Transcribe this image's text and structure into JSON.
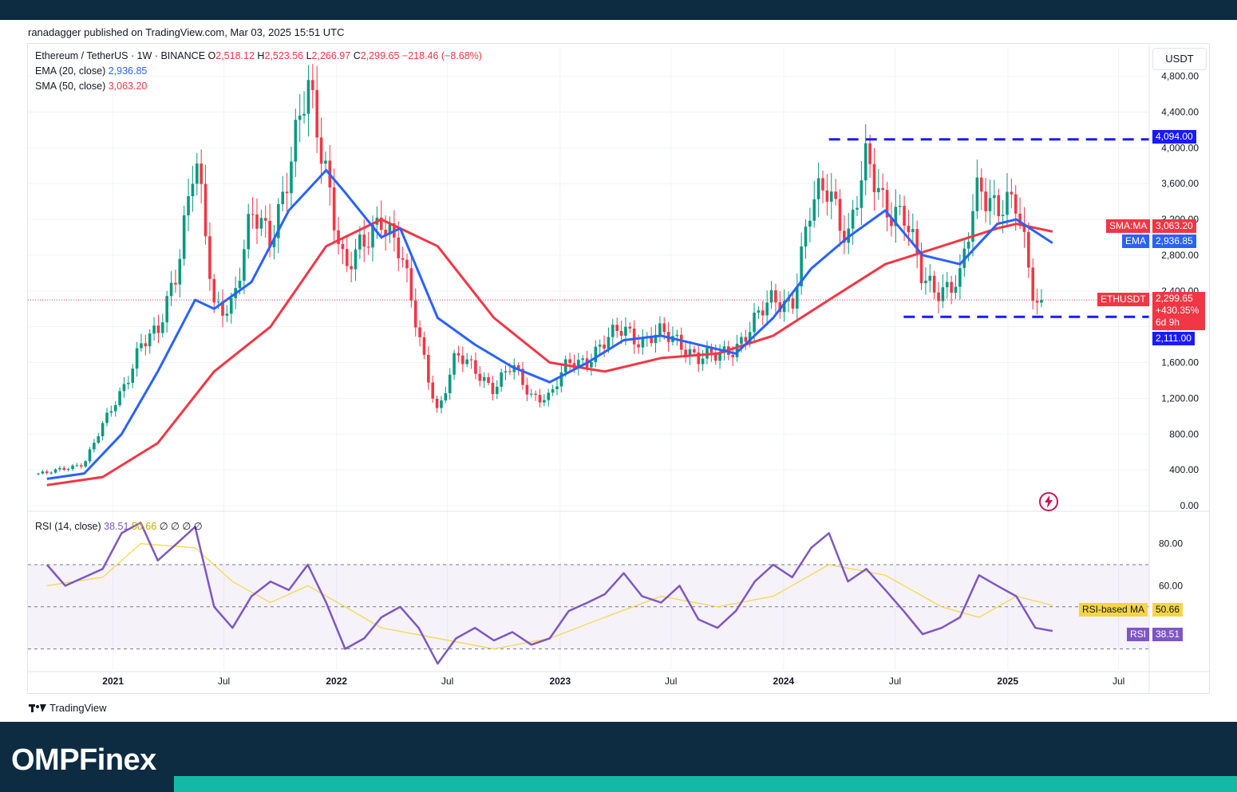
{
  "publisher_line": "ranadagger published on TradingView.com, Mar 03, 2025 15:51 UTC",
  "legend": {
    "symbol": "Ethereum / TetherUS · 1W · BINANCE",
    "o_label": "O",
    "o": "2,518.12",
    "h_label": "H",
    "h": "2,523.56",
    "l_label": "L",
    "l": "2,266.97",
    "c_label": "C",
    "c": "2,299.65",
    "change": "−218.46 (−8.68%)",
    "ema_label": "EMA (20, close)",
    "ema_value": "2,936.85",
    "sma_label": "SMA (50, close)",
    "sma_value": "3,063.20",
    "rsi_label": "RSI (14, close)",
    "rsi_value": "38.51",
    "rsi_ma_value": "50.66",
    "rsi_extra": "∅ ∅ ∅ ∅"
  },
  "currency": "USDT",
  "tags": {
    "resistance": "4,094.00",
    "sma_name": "SMA:MA",
    "sma_value": "3,063.20",
    "ema_name": "EMA",
    "ema_value": "2,936.85",
    "symbol": "ETHUSDT",
    "price": "2,299.65",
    "change_pct": "+430.35%",
    "countdown": "6d 9h",
    "support": "2,111.00",
    "rsi_ma_name": "RSI-based MA",
    "rsi_ma_value": "50.66",
    "rsi_name": "RSI",
    "rsi_value": "38.51"
  },
  "footer_logo": "TradingView",
  "brand": "OMPFinex",
  "colors": {
    "ema": "#2962ff",
    "sma": "#f23645",
    "up": "#089981",
    "down": "#f23645",
    "rsi": "#7e57c2",
    "rsi_ma": "#f5d547",
    "level": "#1a1aff",
    "background": "#0d2c42",
    "accent": "#14b8a6"
  },
  "chart_data": [
    {
      "type": "candlestick",
      "title": "Ethereum / TetherUS · 1W · BINANCE",
      "x_ticks": [
        "2021",
        "Jul",
        "2022",
        "Jul",
        "2023",
        "Jul",
        "2024",
        "Jul",
        "2025",
        "Jul"
      ],
      "y_ticks": [
        0,
        400,
        800,
        1200,
        1600,
        2000,
        2400,
        2800,
        3200,
        3600,
        4000,
        4400,
        4800
      ],
      "y_tick_labels": [
        "0.00",
        "400.00",
        "800.00",
        "1,200.00",
        "1,600.00",
        "2,000.00",
        "2,400.00",
        "2,800.00",
        "3,200.00",
        "3,600.00",
        "4,000.00",
        "4,400.00",
        "4,800.00"
      ],
      "ylim": [
        0,
        4850
      ],
      "last_close": 2299.65,
      "levels": [
        {
          "name": "resistance",
          "value": 4094,
          "from": "2024-03",
          "to": "2025-07"
        },
        {
          "name": "support",
          "value": 2111,
          "from": "2024-07",
          "to": "2025-07"
        }
      ],
      "close_path": [
        [
          "2020-09",
          360
        ],
        [
          "2020-11",
          480
        ],
        [
          "2021-01",
          1300
        ],
        [
          "2021-02",
          1800
        ],
        [
          "2021-03",
          1900
        ],
        [
          "2021-04",
          2700
        ],
        [
          "2021-05",
          3900
        ],
        [
          "2021-06",
          2200
        ],
        [
          "2021-07",
          2300
        ],
        [
          "2021-08",
          3200
        ],
        [
          "2021-09",
          3000
        ],
        [
          "2021-10",
          3800
        ],
        [
          "2021-11",
          4600
        ],
        [
          "2021-12",
          3800
        ],
        [
          "2022-01",
          2600
        ],
        [
          "2022-02",
          2900
        ],
        [
          "2022-03",
          3300
        ],
        [
          "2022-04",
          2800
        ],
        [
          "2022-05",
          1900
        ],
        [
          "2022-06",
          1050
        ],
        [
          "2022-07",
          1650
        ],
        [
          "2022-08",
          1550
        ],
        [
          "2022-09",
          1300
        ],
        [
          "2022-10",
          1550
        ],
        [
          "2022-11",
          1250
        ],
        [
          "2022-12",
          1200
        ],
        [
          "2023-01",
          1600
        ],
        [
          "2023-02",
          1650
        ],
        [
          "2023-03",
          1800
        ],
        [
          "2023-04",
          2000
        ],
        [
          "2023-05",
          1850
        ],
        [
          "2023-06",
          1900
        ],
        [
          "2023-07",
          1850
        ],
        [
          "2023-08",
          1650
        ],
        [
          "2023-09",
          1650
        ],
        [
          "2023-10",
          1800
        ],
        [
          "2023-11",
          2050
        ],
        [
          "2023-12",
          2300
        ],
        [
          "2024-01",
          2300
        ],
        [
          "2024-02",
          3300
        ],
        [
          "2024-03",
          3600
        ],
        [
          "2024-04",
          3000
        ],
        [
          "2024-05",
          3800
        ],
        [
          "2024-06",
          3400
        ],
        [
          "2024-07",
          3250
        ],
        [
          "2024-08",
          2500
        ],
        [
          "2024-09",
          2450
        ],
        [
          "2024-10",
          2500
        ],
        [
          "2024-11",
          3600
        ],
        [
          "2024-12",
          3400
        ],
        [
          "2025-01",
          3300
        ],
        [
          "2025-02",
          2300
        ],
        [
          "2025-03",
          2299.65
        ]
      ],
      "ema20": [
        [
          "2020-09",
          300
        ],
        [
          "2020-11",
          360
        ],
        [
          "2021-01",
          800
        ],
        [
          "2021-03",
          1500
        ],
        [
          "2021-05",
          2300
        ],
        [
          "2021-06",
          2200
        ],
        [
          "2021-08",
          2500
        ],
        [
          "2021-10",
          3300
        ],
        [
          "2021-12",
          3750
        ],
        [
          "2022-01",
          3500
        ],
        [
          "2022-03",
          3000
        ],
        [
          "2022-04",
          3100
        ],
        [
          "2022-06",
          2100
        ],
        [
          "2022-08",
          1800
        ],
        [
          "2022-10",
          1550
        ],
        [
          "2022-12",
          1380
        ],
        [
          "2023-02",
          1600
        ],
        [
          "2023-04",
          1850
        ],
        [
          "2023-06",
          1900
        ],
        [
          "2023-08",
          1800
        ],
        [
          "2023-10",
          1700
        ],
        [
          "2023-12",
          2100
        ],
        [
          "2024-02",
          2650
        ],
        [
          "2024-04",
          3000
        ],
        [
          "2024-06",
          3300
        ],
        [
          "2024-08",
          2800
        ],
        [
          "2024-10",
          2700
        ],
        [
          "2024-12",
          3150
        ],
        [
          "2025-01",
          3200
        ],
        [
          "2025-03",
          2936.85
        ]
      ],
      "sma50": [
        [
          "2020-09",
          230
        ],
        [
          "2020-12",
          320
        ],
        [
          "2021-03",
          700
        ],
        [
          "2021-06",
          1500
        ],
        [
          "2021-09",
          2000
        ],
        [
          "2021-12",
          2900
        ],
        [
          "2022-03",
          3200
        ],
        [
          "2022-06",
          2900
        ],
        [
          "2022-09",
          2100
        ],
        [
          "2022-12",
          1600
        ],
        [
          "2023-03",
          1500
        ],
        [
          "2023-06",
          1650
        ],
        [
          "2023-09",
          1700
        ],
        [
          "2023-12",
          1900
        ],
        [
          "2024-03",
          2300
        ],
        [
          "2024-06",
          2700
        ],
        [
          "2024-09",
          2900
        ],
        [
          "2024-12",
          3100
        ],
        [
          "2025-01",
          3150
        ],
        [
          "2025-03",
          3063.2
        ]
      ]
    },
    {
      "type": "line",
      "title": "RSI (14, close)",
      "y_ticks": [
        20,
        40,
        60,
        80
      ],
      "y_tick_labels": [
        "",
        "",
        "60.00",
        "80.00"
      ],
      "bands": [
        30,
        50,
        70
      ],
      "ylim": [
        20,
        95
      ],
      "series": [
        {
          "name": "RSI",
          "values": [
            [
              "2020-09",
              70
            ],
            [
              "2020-10",
              60
            ],
            [
              "2020-12",
              68
            ],
            [
              "2021-01",
              85
            ],
            [
              "2021-02",
              90
            ],
            [
              "2021-03",
              72
            ],
            [
              "2021-04",
              80
            ],
            [
              "2021-05",
              88
            ],
            [
              "2021-06",
              50
            ],
            [
              "2021-07",
              40
            ],
            [
              "2021-08",
              55
            ],
            [
              "2021-09",
              62
            ],
            [
              "2021-10",
              58
            ],
            [
              "2021-11",
              70
            ],
            [
              "2021-12",
              52
            ],
            [
              "2022-01",
              30
            ],
            [
              "2022-02",
              35
            ],
            [
              "2022-03",
              45
            ],
            [
              "2022-04",
              50
            ],
            [
              "2022-05",
              40
            ],
            [
              "2022-06",
              23
            ],
            [
              "2022-07",
              35
            ],
            [
              "2022-08",
              40
            ],
            [
              "2022-09",
              34
            ],
            [
              "2022-10",
              38
            ],
            [
              "2022-11",
              32
            ],
            [
              "2022-12",
              35
            ],
            [
              "2023-01",
              48
            ],
            [
              "2023-02",
              52
            ],
            [
              "2023-03",
              56
            ],
            [
              "2023-04",
              66
            ],
            [
              "2023-05",
              55
            ],
            [
              "2023-06",
              52
            ],
            [
              "2023-07",
              60
            ],
            [
              "2023-08",
              44
            ],
            [
              "2023-09",
              40
            ],
            [
              "2023-10",
              48
            ],
            [
              "2023-11",
              62
            ],
            [
              "2023-12",
              70
            ],
            [
              "2024-01",
              64
            ],
            [
              "2024-02",
              78
            ],
            [
              "2024-03",
              85
            ],
            [
              "2024-04",
              62
            ],
            [
              "2024-05",
              68
            ],
            [
              "2024-06",
              58
            ],
            [
              "2024-07",
              48
            ],
            [
              "2024-08",
              37
            ],
            [
              "2024-09",
              40
            ],
            [
              "2024-10",
              45
            ],
            [
              "2024-11",
              65
            ],
            [
              "2024-12",
              60
            ],
            [
              "2025-01",
              55
            ],
            [
              "2025-02",
              40
            ],
            [
              "2025-03",
              38.51
            ]
          ]
        },
        {
          "name": "RSI-based MA",
          "values": [
            [
              "2020-09",
              60
            ],
            [
              "2020-12",
              64
            ],
            [
              "2021-02",
              80
            ],
            [
              "2021-05",
              78
            ],
            [
              "2021-07",
              62
            ],
            [
              "2021-09",
              52
            ],
            [
              "2021-11",
              60
            ],
            [
              "2022-01",
              50
            ],
            [
              "2022-03",
              40
            ],
            [
              "2022-06",
              35
            ],
            [
              "2022-09",
              30
            ],
            [
              "2022-12",
              35
            ],
            [
              "2023-03",
              45
            ],
            [
              "2023-06",
              55
            ],
            [
              "2023-09",
              50
            ],
            [
              "2023-12",
              55
            ],
            [
              "2024-03",
              70
            ],
            [
              "2024-06",
              65
            ],
            [
              "2024-09",
              50
            ],
            [
              "2024-11",
              45
            ],
            [
              "2025-01",
              55
            ],
            [
              "2025-03",
              50.66
            ]
          ]
        }
      ]
    }
  ]
}
